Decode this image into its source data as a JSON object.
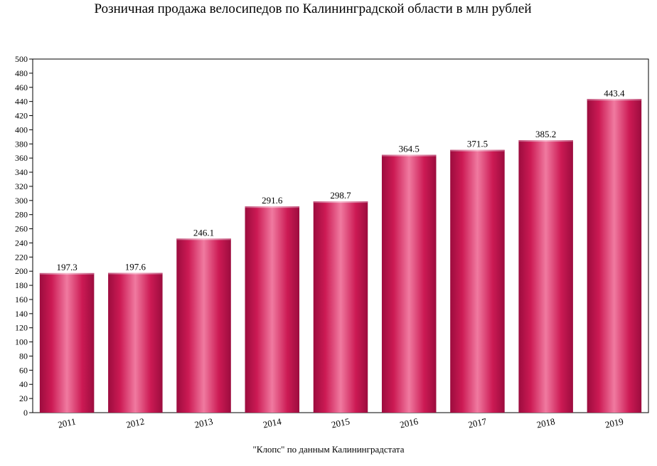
{
  "chart_data": {
    "type": "bar",
    "title": "Розничная продажа велосипедов  по Калининградской области в млн рублей",
    "source": "\"Клопс\" по данным Калининградстата",
    "categories": [
      "2011",
      "2012",
      "2013",
      "2014",
      "2015",
      "2016",
      "2017",
      "2018",
      "2019"
    ],
    "values": [
      197.3,
      197.6,
      246.1,
      291.6,
      298.7,
      364.5,
      371.5,
      385.2,
      443.4
    ],
    "value_labels": [
      "197.3",
      "197.6",
      "246.1",
      "291.6",
      "298.7",
      "364.5",
      "371.5",
      "385.2",
      "443.4"
    ],
    "ylim": [
      0,
      500
    ],
    "ytick_step": 20,
    "xlabel": "",
    "ylabel": "",
    "grid": false,
    "legend": "none",
    "colors": {
      "bar_dark": "#9c0c3e",
      "bar_mid": "#d01a55",
      "bar_light": "#f07aa0",
      "axis": "#000000"
    }
  }
}
